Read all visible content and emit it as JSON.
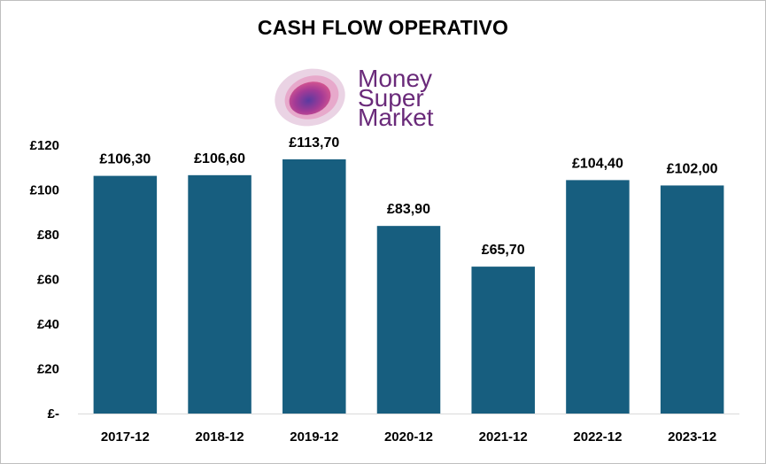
{
  "chart_data": {
    "type": "bar",
    "title": "CASH FLOW OPERATIVO",
    "categories": [
      "2017-12",
      "2018-12",
      "2019-12",
      "2020-12",
      "2021-12",
      "2022-12",
      "2023-12"
    ],
    "values": [
      106.3,
      106.6,
      113.7,
      83.9,
      65.7,
      104.4,
      102.0
    ],
    "data_labels": [
      "£106,30",
      "£106,60",
      "£113,70",
      "£83,90",
      "£65,70",
      "£104,40",
      "£102,00"
    ],
    "y_ticks": [
      0,
      20,
      40,
      60,
      80,
      100,
      120
    ],
    "y_tick_labels": [
      "£-",
      "£20",
      "£40",
      "£60",
      "£80",
      "£100",
      "£120"
    ],
    "ylim": [
      0,
      120
    ],
    "xlabel": "",
    "ylabel": "",
    "grid": false,
    "bar_color": "#175e7f"
  },
  "logo": {
    "lines": [
      "Money",
      "Super",
      "Market"
    ],
    "text_color": "#6a2a7a",
    "blob_colors": [
      "#e8c5dd",
      "#c23e8c",
      "#6a3fa1"
    ]
  }
}
